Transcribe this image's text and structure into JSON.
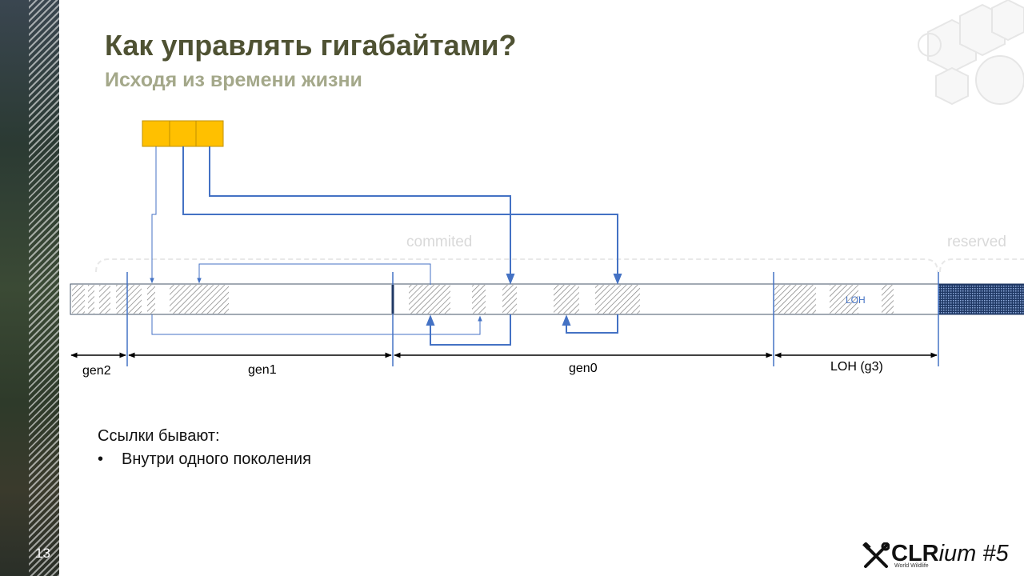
{
  "slide": {
    "number": "13",
    "title": "Как управлять гигабайтами?",
    "subtitle": "Исходя из времени жизни"
  },
  "diagram": {
    "region_labels": {
      "commited": "commited",
      "reserved": "reserved"
    },
    "segment_labels": [
      "gen2",
      "gen1",
      "gen0",
      "LOH (g3)"
    ],
    "inner_label": "LOH",
    "colors": {
      "root_fill": "#ffc000",
      "root_stroke": "#c09000",
      "arrow": "#4472c4",
      "heap_border": "#44546a",
      "region_label": "#d9d9d9"
    }
  },
  "body": {
    "intro": "Ссылки бывают:",
    "bullets": [
      "Внутри одного поколения"
    ]
  },
  "logo": {
    "name_bold": "CLR",
    "name_italic": "ium #5",
    "tagline": "World Wildlife"
  }
}
